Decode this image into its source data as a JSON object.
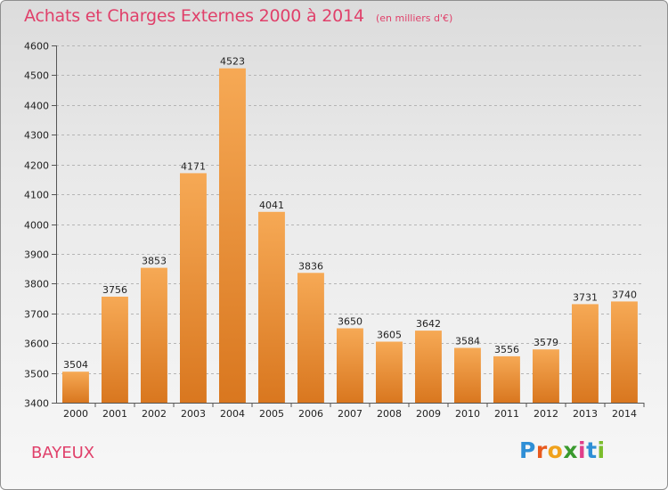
{
  "header": {
    "title": "Achats et Charges Externes 2000 à 2014",
    "subtitle": "(en milliers d'€)"
  },
  "footer": {
    "city": "BAYEUX",
    "logo_text": "Proxiti",
    "logo_colors": [
      "#2f8fd6",
      "#e85a1e",
      "#f0a21c",
      "#3a9a2e",
      "#e03e8a",
      "#2f8fd6",
      "#7bbd2c"
    ]
  },
  "colors": {
    "bar_top": "#f6a955",
    "bar_bottom": "#d9771f",
    "title": "#e0406a",
    "grid": "#b5b5b5"
  },
  "chart_data": {
    "type": "bar",
    "title": "Achats et Charges Externes 2000 à 2014",
    "subtitle": "(en milliers d'€)",
    "xlabel": "",
    "ylabel": "",
    "ylim": [
      3400,
      4600
    ],
    "yticks": [
      3400,
      3500,
      3600,
      3700,
      3800,
      3900,
      4000,
      4100,
      4200,
      4300,
      4400,
      4500,
      4600
    ],
    "grid": true,
    "categories": [
      "2000",
      "2001",
      "2002",
      "2003",
      "2004",
      "2005",
      "2006",
      "2007",
      "2008",
      "2009",
      "2010",
      "2011",
      "2012",
      "2013",
      "2014"
    ],
    "values": [
      3504,
      3756,
      3853,
      4171,
      4523,
      4041,
      3836,
      3650,
      3605,
      3642,
      3584,
      3556,
      3579,
      3731,
      3740
    ]
  }
}
